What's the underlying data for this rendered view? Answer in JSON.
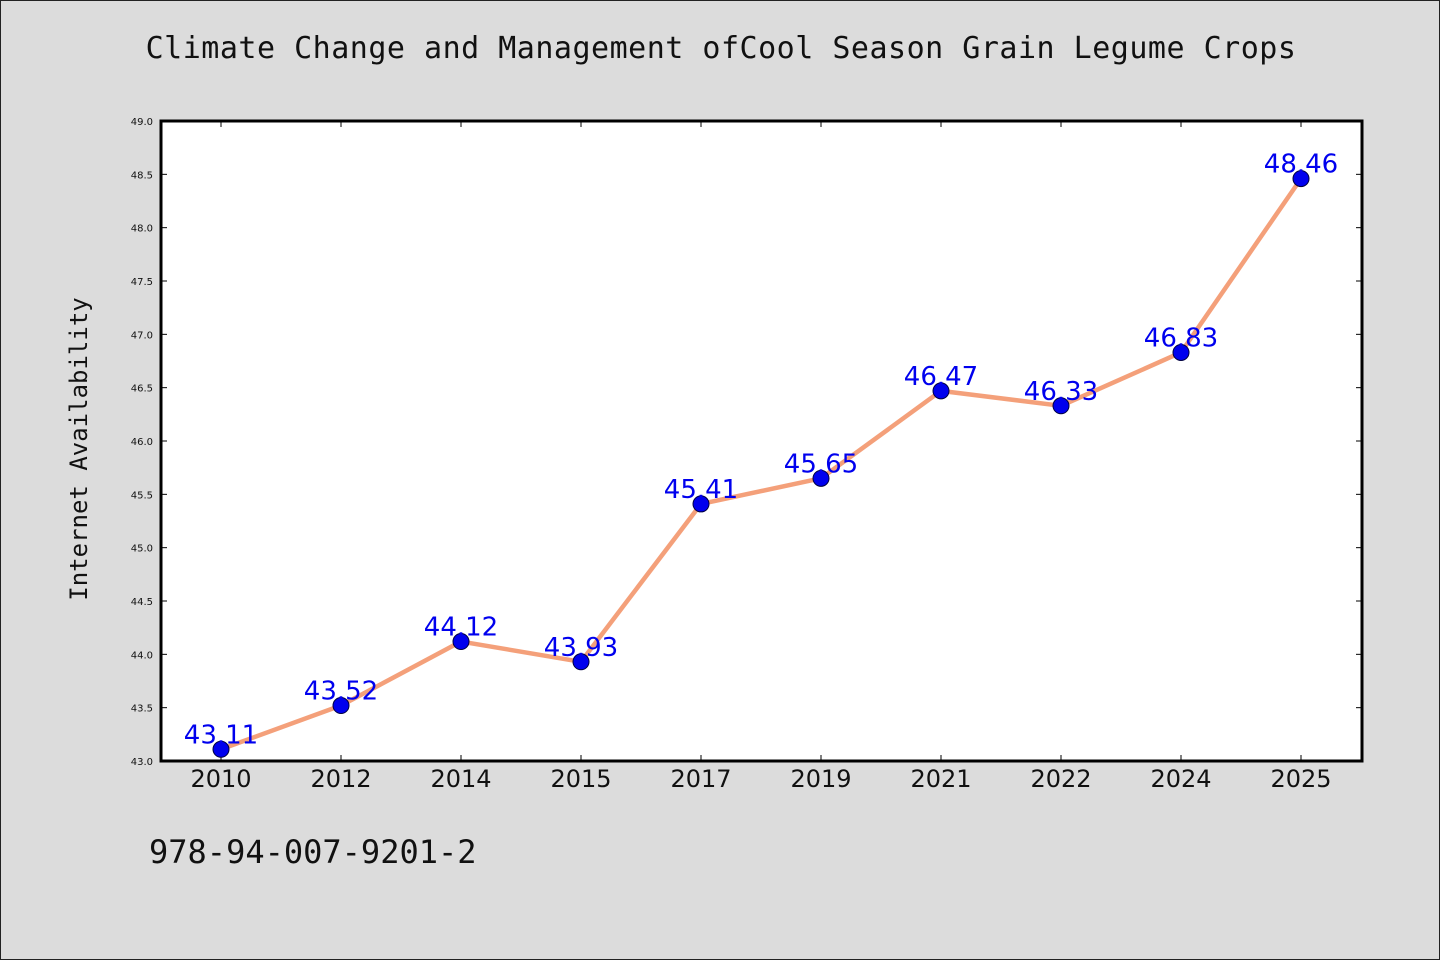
{
  "header": {
    "title": "Climate Change and Management ofCool Season Grain Legume Crops"
  },
  "footer": {
    "isbn": "978-94-007-9201-2"
  },
  "colors": {
    "line": "#f4a07a",
    "marker": "#0000ee",
    "label": "#0000ee",
    "background": "#dcdcdc",
    "plot_background": "#ffffff"
  },
  "chart_data": {
    "type": "line",
    "title": "Climate Change and Management ofCool Season Grain Legume Crops",
    "xlabel": "",
    "ylabel": "Internet Availability",
    "categories": [
      "2010",
      "2012",
      "2014",
      "2015",
      "2017",
      "2019",
      "2021",
      "2022",
      "2024",
      "2025"
    ],
    "series": [
      {
        "values": [
          43.11,
          43.52,
          44.12,
          43.93,
          45.41,
          45.65,
          46.47,
          46.33,
          46.83,
          48.46
        ]
      }
    ],
    "data_labels": [
      "43.11",
      "43.52",
      "44.12",
      "43.93",
      "45.41",
      "45.65",
      "46.47",
      "46.33",
      "46.83",
      "48.46"
    ],
    "ylim": [
      43.0,
      49.0
    ],
    "yticks": [
      "43.0",
      "43.5",
      "44.0",
      "44.5",
      "45.0",
      "45.5",
      "46.0",
      "46.5",
      "47.0",
      "47.5",
      "48.0",
      "48.5",
      "49.0"
    ],
    "grid": false,
    "legend": "none"
  }
}
